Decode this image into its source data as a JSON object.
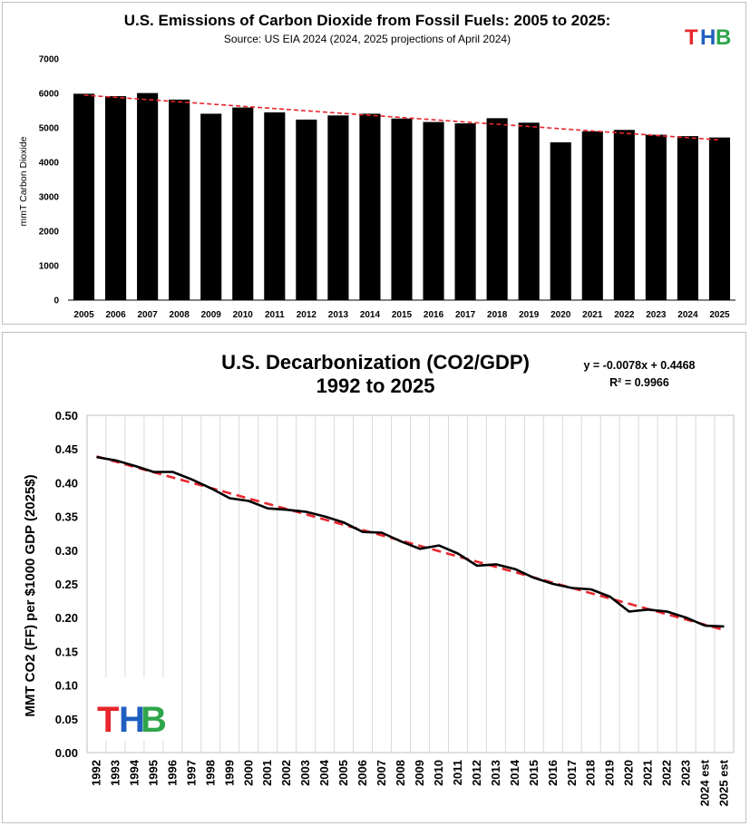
{
  "logo": {
    "t": "T",
    "h": "H",
    "b": "B"
  },
  "colors": {
    "bar": "#000000",
    "trend": "#e8262d",
    "line": "#000000",
    "grid": "#d9d9d9"
  },
  "chart_data": [
    {
      "type": "bar",
      "title": "U.S. Emissions of Carbon Dioxide from Fossil Fuels: 2005 to 2025:",
      "subtitle": "Source: US EIA 2024 (2024, 2025 projections of April 2024)",
      "xlabel": "",
      "ylabel": "mmT Carbon Dioxide",
      "ylim": [
        0,
        7000
      ],
      "yticks": [
        "0",
        "1000",
        "2000",
        "3000",
        "4000",
        "5000",
        "6000",
        "7000"
      ],
      "categories": [
        "2005",
        "2006",
        "2007",
        "2008",
        "2009",
        "2010",
        "2011",
        "2012",
        "2013",
        "2014",
        "2015",
        "2016",
        "2017",
        "2018",
        "2019",
        "2020",
        "2021",
        "2022",
        "2023",
        "2024",
        "2025"
      ],
      "values": [
        5990,
        5920,
        6010,
        5820,
        5410,
        5590,
        5450,
        5240,
        5360,
        5410,
        5270,
        5170,
        5130,
        5280,
        5150,
        4580,
        4900,
        4940,
        4800,
        4760,
        4720
      ],
      "trendline": {
        "start": 5950,
        "end": 4650
      },
      "grid": false
    },
    {
      "type": "line",
      "title": "U.S. Decarbonization (CO2/GDP)",
      "title_line2": "1992 to 2025",
      "equation": "y = -0.0078x  + 0.4468",
      "r_squared": "R² = 0.9966",
      "xlabel": "",
      "ylabel": "MMT CO2 (FF) per $1000 GDP (2025$)",
      "ylim": [
        0,
        0.5
      ],
      "yticks": [
        "0.00",
        "0.05",
        "0.10",
        "0.15",
        "0.20",
        "0.25",
        "0.30",
        "0.35",
        "0.40",
        "0.45",
        "0.50"
      ],
      "categories": [
        "1992",
        "1993",
        "1994",
        "1995",
        "1996",
        "1997",
        "1998",
        "1999",
        "2000",
        "2001",
        "2002",
        "2003",
        "2004",
        "2005",
        "2006",
        "2007",
        "2008",
        "2009",
        "2010",
        "2011",
        "2012",
        "2013",
        "2014",
        "2015",
        "2016",
        "2017",
        "2018",
        "2019",
        "2020",
        "2021",
        "2022",
        "2023",
        "2024 est",
        "2025 est"
      ],
      "values": [
        0.438,
        0.433,
        0.425,
        0.416,
        0.416,
        0.405,
        0.392,
        0.377,
        0.373,
        0.362,
        0.36,
        0.357,
        0.35,
        0.341,
        0.327,
        0.326,
        0.313,
        0.302,
        0.307,
        0.295,
        0.277,
        0.279,
        0.272,
        0.259,
        0.25,
        0.244,
        0.242,
        0.231,
        0.209,
        0.212,
        0.209,
        0.2,
        0.188,
        0.187
      ],
      "trendline": {
        "slope": -0.0078,
        "intercept": 0.4468
      },
      "grid": true
    }
  ]
}
